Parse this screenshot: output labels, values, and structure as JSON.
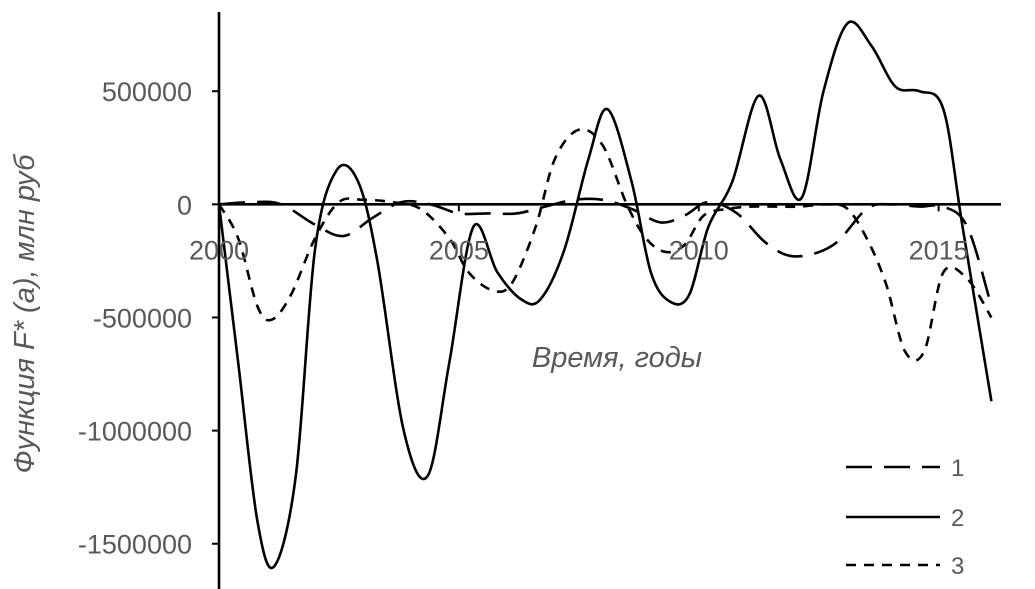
{
  "chart_data": {
    "type": "line",
    "title": "",
    "xlabel": "Время, годы",
    "ylabel": "Функция F* (a), млн руб",
    "xlim": [
      2000,
      2016.3
    ],
    "ylim": [
      -1700000,
      850000
    ],
    "x_ticks": [
      {
        "value": 2000,
        "label": "2000"
      },
      {
        "value": 2005,
        "label": "2005"
      },
      {
        "value": 2010,
        "label": "2010"
      },
      {
        "value": 2015,
        "label": "2015"
      }
    ],
    "y_ticks": [
      {
        "value": 500000,
        "label": "500000"
      },
      {
        "value": 0,
        "label": "0"
      },
      {
        "value": -500000,
        "label": "-500000"
      },
      {
        "value": -1000000,
        "label": "-1000000"
      },
      {
        "value": -1500000,
        "label": "-1500000"
      }
    ],
    "grid": false,
    "legend_position": "bottom-right",
    "series": [
      {
        "name": "1",
        "dash": "long-dash",
        "color": "#000000",
        "x": [
          2000,
          2000.7,
          2001.3,
          2002,
          2002.6,
          2003.2,
          2003.8,
          2004.4,
          2005,
          2005.6,
          2006.2,
          2006.8,
          2007.4,
          2008,
          2008.6,
          2009.2,
          2009.7,
          2010.2,
          2010.8,
          2011.4,
          2012,
          2012.8,
          2013.5,
          2014,
          2014.6,
          2015.1,
          2015.6,
          2016.1
        ],
        "values": [
          0,
          10000,
          0,
          -90000,
          -140000,
          -60000,
          10000,
          0,
          -40000,
          -40000,
          -40000,
          -10000,
          20000,
          20000,
          -20000,
          -80000,
          -50000,
          10000,
          -40000,
          -170000,
          -230000,
          -180000,
          -20000,
          0,
          -10000,
          -10000,
          -100000,
          -450000
        ]
      },
      {
        "name": "2",
        "dash": "solid",
        "color": "#000000",
        "x": [
          2000,
          2000.4,
          2000.8,
          2001.15,
          2001.6,
          2002,
          2002.45,
          2002.9,
          2003.3,
          2003.85,
          2004.35,
          2004.8,
          2005.3,
          2005.8,
          2006.3,
          2006.7,
          2007.2,
          2007.7,
          2008.1,
          2008.6,
          2009,
          2009.4,
          2009.8,
          2010.2,
          2010.7,
          2011.25,
          2011.7,
          2012.15,
          2012.6,
          2013.1,
          2013.6,
          2014.1,
          2014.6,
          2015.1,
          2015.5,
          2016.1
        ],
        "values": [
          0,
          -700000,
          -1400000,
          -1600000,
          -1200000,
          -200000,
          150000,
          100000,
          -250000,
          -1000000,
          -1200000,
          -700000,
          -100000,
          -300000,
          -420000,
          -420000,
          -200000,
          200000,
          420000,
          100000,
          -300000,
          -430000,
          -400000,
          -100000,
          100000,
          480000,
          200000,
          30000,
          500000,
          800000,
          700000,
          520000,
          500000,
          420000,
          -100000,
          -870000
        ]
      },
      {
        "name": "3",
        "dash": "short-dash",
        "color": "#000000",
        "x": [
          2000,
          2000.4,
          2000.8,
          2001.1,
          2001.5,
          2002,
          2002.5,
          2003,
          2003.6,
          2004.2,
          2004.8,
          2005.2,
          2005.7,
          2006.1,
          2006.6,
          2007,
          2007.5,
          2008,
          2008.5,
          2008.9,
          2009.3,
          2009.7,
          2010.1,
          2010.6,
          2011.1,
          2011.6,
          2012.1,
          2012.7,
          2013.1,
          2013.5,
          2013.9,
          2014.3,
          2014.7,
          2015.1,
          2015.6,
          2016.1
        ],
        "values": [
          0,
          -150000,
          -450000,
          -510000,
          -400000,
          -150000,
          10000,
          20000,
          10000,
          -20000,
          -150000,
          -300000,
          -380000,
          -350000,
          -100000,
          200000,
          330000,
          260000,
          0,
          -150000,
          -210000,
          -180000,
          -50000,
          -20000,
          -10000,
          -10000,
          -10000,
          0,
          -20000,
          -150000,
          -350000,
          -650000,
          -650000,
          -300000,
          -330000,
          -500000
        ]
      }
    ]
  }
}
